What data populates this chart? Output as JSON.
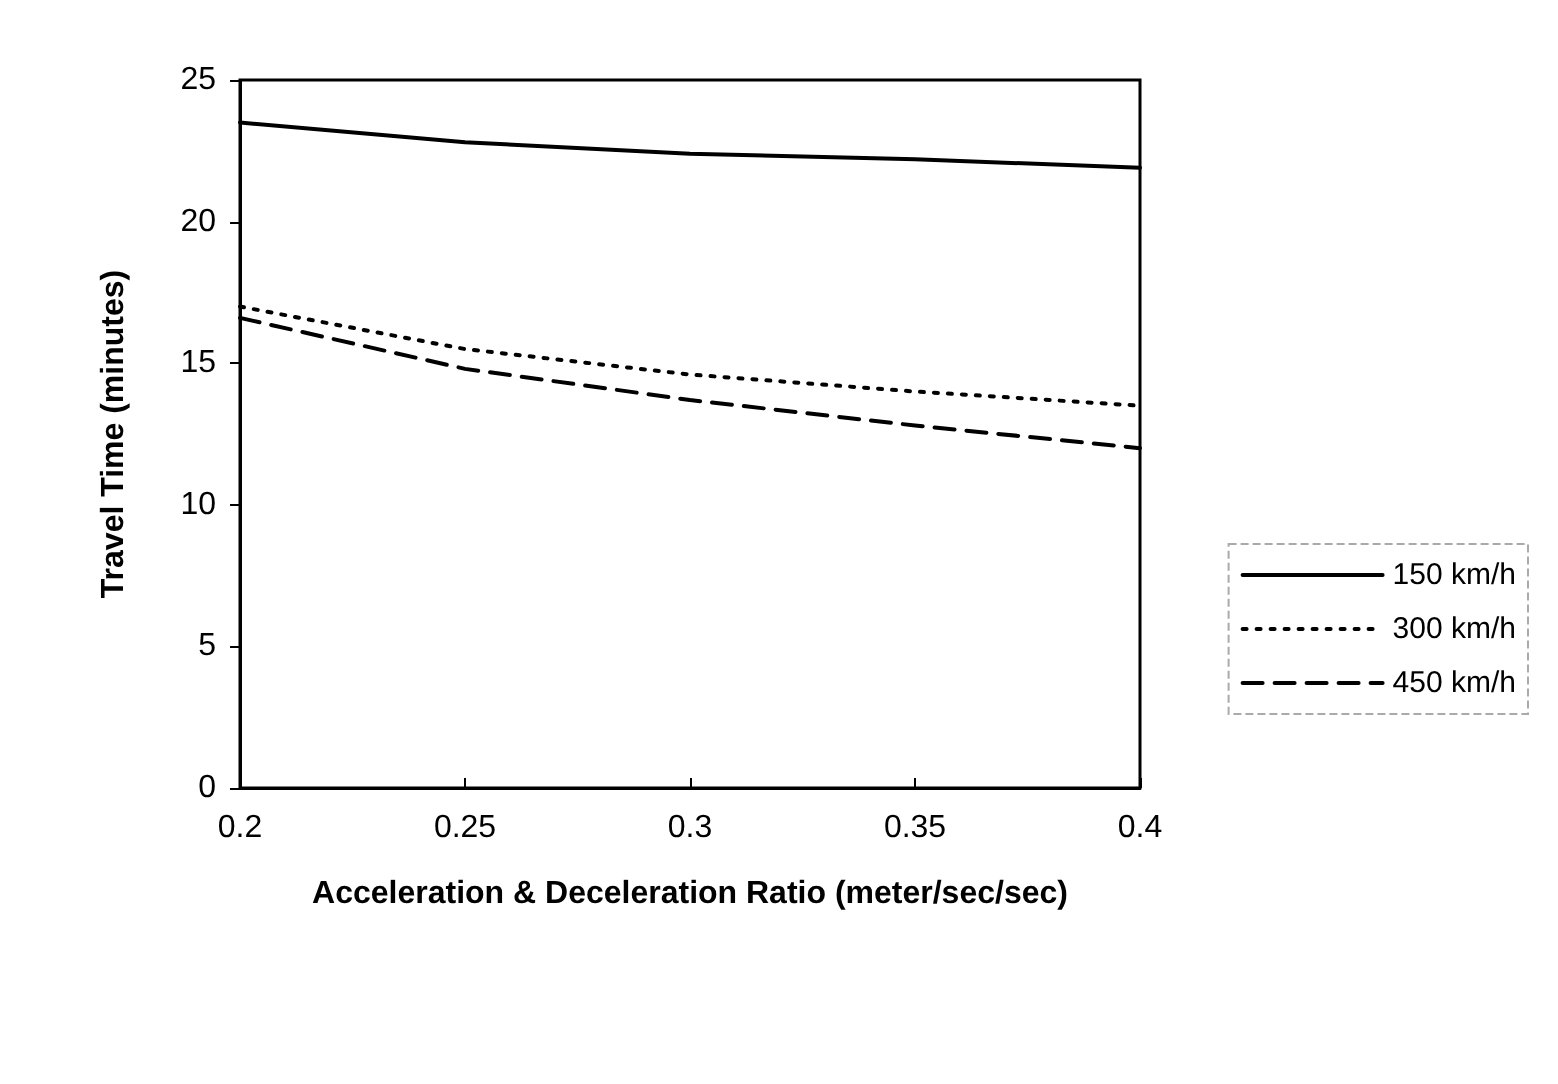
{
  "chart_data": {
    "type": "line",
    "xlabel": "Acceleration & Deceleration Ratio (meter/sec/sec)",
    "ylabel": "Travel Time (minutes)",
    "x": [
      0.2,
      0.25,
      0.3,
      0.35,
      0.4
    ],
    "series": [
      {
        "name": "150 km/h",
        "color": "#000000",
        "line_style": "solid",
        "values": [
          23.5,
          22.8,
          22.4,
          22.2,
          21.9
        ]
      },
      {
        "name": "300 km/h",
        "color": "#000000",
        "line_style": "dotted",
        "values": [
          17,
          15.5,
          14.6,
          14.0,
          13.5
        ]
      },
      {
        "name": "450 km/h",
        "color": "#000000",
        "line_style": "dashed",
        "values": [
          16.6,
          14.8,
          13.7,
          12.8,
          12.0
        ]
      }
    ],
    "xlim": [
      0.2,
      0.4
    ],
    "xticks": [
      0.2,
      0.25,
      0.3,
      0.35,
      0.4
    ],
    "ylim": [
      0,
      25
    ],
    "yticks": [
      0,
      5,
      10,
      15,
      20,
      25
    ],
    "grid": false,
    "legend": "right",
    "marker": "none"
  }
}
